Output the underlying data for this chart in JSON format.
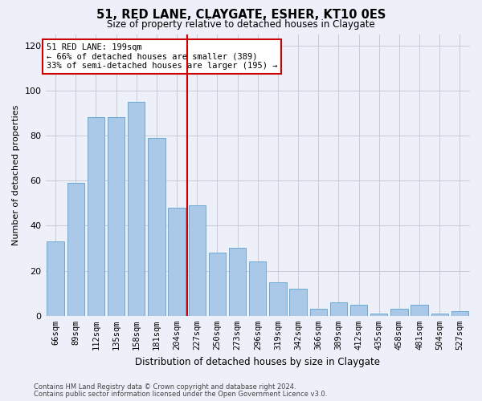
{
  "title": "51, RED LANE, CLAYGATE, ESHER, KT10 0ES",
  "subtitle": "Size of property relative to detached houses in Claygate",
  "xlabel": "Distribution of detached houses by size in Claygate",
  "ylabel": "Number of detached properties",
  "footer_line1": "Contains HM Land Registry data © Crown copyright and database right 2024.",
  "footer_line2": "Contains public sector information licensed under the Open Government Licence v3.0.",
  "annotation_line1": "51 RED LANE: 199sqm",
  "annotation_line2": "← 66% of detached houses are smaller (389)",
  "annotation_line3": "33% of semi-detached houses are larger (195) →",
  "bar_color": "#aac8e8",
  "bar_edge_color": "#6aaad4",
  "redline_color": "#cc0000",
  "categories": [
    "66sqm",
    "89sqm",
    "112sqm",
    "135sqm",
    "158sqm",
    "181sqm",
    "204sqm",
    "227sqm",
    "250sqm",
    "273sqm",
    "296sqm",
    "319sqm",
    "342sqm",
    "366sqm",
    "389sqm",
    "412sqm",
    "435sqm",
    "458sqm",
    "481sqm",
    "504sqm",
    "527sqm"
  ],
  "values": [
    33,
    59,
    88,
    88,
    95,
    79,
    48,
    49,
    28,
    30,
    24,
    15,
    12,
    3,
    6,
    5,
    1,
    3,
    5,
    1,
    2
  ],
  "ylim": [
    0,
    125
  ],
  "yticks": [
    0,
    20,
    40,
    60,
    80,
    100,
    120
  ],
  "bg_color": "#edf0f8",
  "grid_color": "#c8ccd8",
  "redline_bar_idx": 6,
  "title_fontsize": 10.5,
  "subtitle_fontsize": 8.5,
  "xlabel_fontsize": 8.5,
  "ylabel_fontsize": 8,
  "tick_fontsize": 7.5,
  "annotation_fontsize": 7.5,
  "footer_fontsize": 6
}
